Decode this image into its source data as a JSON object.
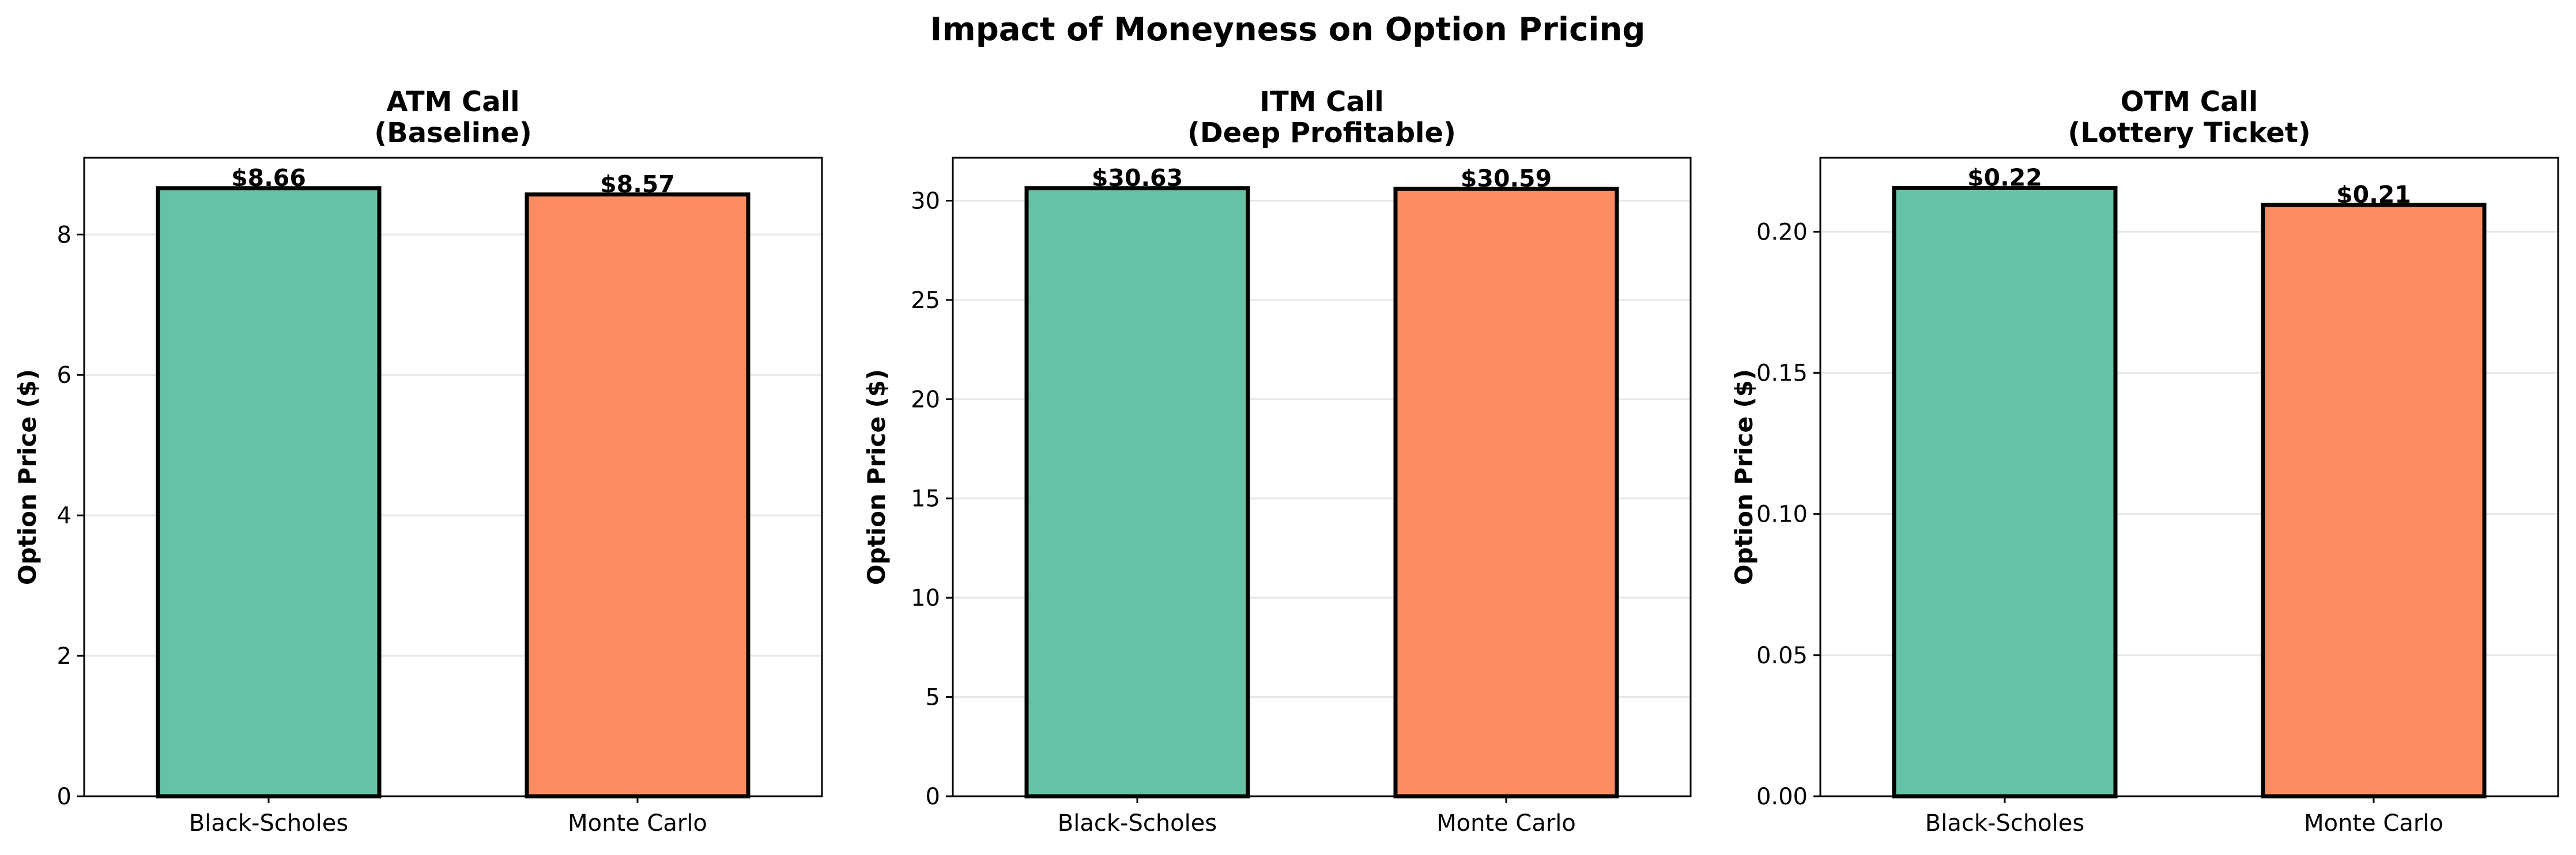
{
  "figure": {
    "title": "Impact of Moneyness on Option Pricing"
  },
  "colors": {
    "black_scholes": "#66c2a5",
    "monte_carlo": "#fc8d62",
    "grid": "#e6e6e6"
  },
  "chart_data": [
    {
      "type": "bar",
      "title": "ATM Call\n(Baseline)",
      "categories": [
        "Black-Scholes",
        "Monte Carlo"
      ],
      "values": [
        8.66,
        8.57
      ],
      "data_labels": [
        "$8.66",
        "$8.57"
      ],
      "xlabel": "",
      "ylabel": "Option Price ($)",
      "ylim": [
        0,
        9.093
      ],
      "yticks": [
        0,
        2,
        4,
        6,
        8
      ],
      "ytick_labels": [
        "0",
        "2",
        "4",
        "6",
        "8"
      ],
      "grid": "y"
    },
    {
      "type": "bar",
      "title": "ITM Call\n(Deep Profitable)",
      "categories": [
        "Black-Scholes",
        "Monte Carlo"
      ],
      "values": [
        30.63,
        30.59
      ],
      "data_labels": [
        "$30.63",
        "$30.59"
      ],
      "xlabel": "",
      "ylabel": "Option Price ($)",
      "ylim": [
        0,
        32.16
      ],
      "yticks": [
        0,
        5,
        10,
        15,
        20,
        25,
        30
      ],
      "ytick_labels": [
        "0",
        "5",
        "10",
        "15",
        "20",
        "25",
        "30"
      ],
      "grid": "y"
    },
    {
      "type": "bar",
      "title": "OTM Call\n(Lottery Ticket)",
      "categories": [
        "Black-Scholes",
        "Monte Carlo"
      ],
      "values": [
        0.2155,
        0.2095
      ],
      "data_labels": [
        "$0.22",
        "$0.21"
      ],
      "xlabel": "",
      "ylabel": "Option Price ($)",
      "ylim": [
        0,
        0.2262
      ],
      "yticks": [
        0,
        0.05,
        0.1,
        0.15,
        0.2
      ],
      "ytick_labels": [
        "0.00",
        "0.05",
        "0.10",
        "0.15",
        "0.20"
      ],
      "grid": "y"
    }
  ]
}
